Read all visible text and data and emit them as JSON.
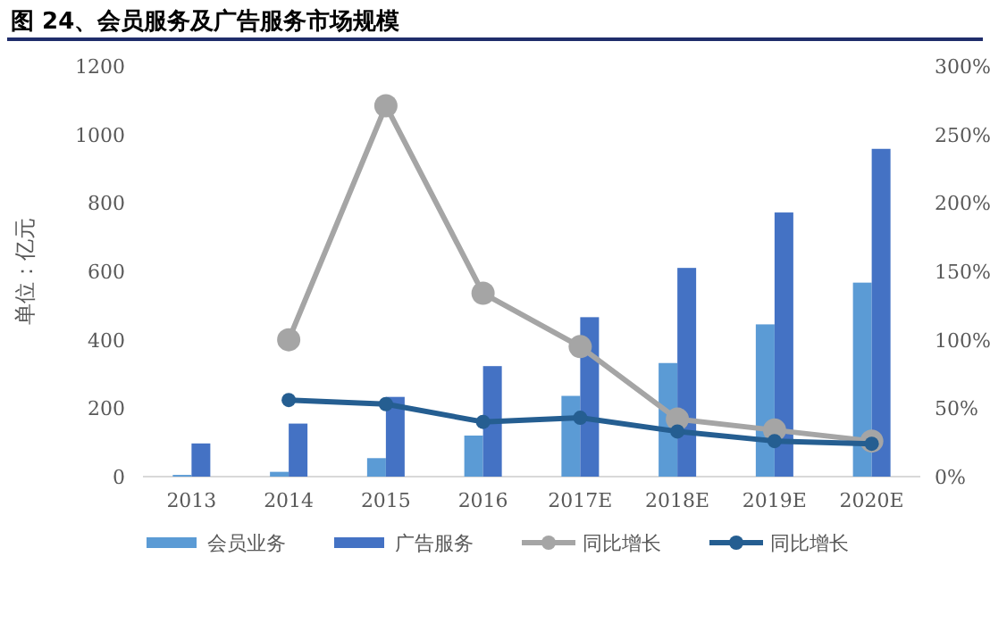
{
  "chart_data": {
    "type": "bar",
    "title": "图 24、会员服务及广告服务市场规模",
    "ylabel": "单位：亿元",
    "categories": [
      "2013",
      "2014",
      "2015",
      "2016",
      "2017E",
      "2018E",
      "2019E",
      "2020E"
    ],
    "series": [
      {
        "name": "会员业务",
        "color": "#5b9bd5",
        "values": [
          5,
          14,
          54,
          120,
          236,
          332,
          445,
          567
        ]
      },
      {
        "name": "广告服务",
        "color": "#4472c4",
        "values": [
          97,
          155,
          233,
          323,
          466,
          610,
          772,
          958
        ]
      },
      {
        "name": "同比增长",
        "type": "line",
        "axis": "y2",
        "color": "#a5a5a5",
        "marker": "circle",
        "values": [
          null,
          100,
          271,
          134,
          95,
          42,
          34,
          26
        ]
      },
      {
        "name": "同比增长",
        "type": "line",
        "axis": "y2",
        "color": "#255e91",
        "marker": "circle",
        "values": [
          null,
          56,
          53,
          40,
          43,
          33,
          26,
          24
        ]
      }
    ],
    "ylim": [
      0,
      1200
    ],
    "yticks": [
      0,
      200,
      400,
      600,
      800,
      1000,
      1200
    ],
    "y2lim": [
      0,
      300
    ],
    "y2ticks": [
      {
        "value": 0,
        "label": "0%"
      },
      {
        "value": 50,
        "label": "50%"
      },
      {
        "value": 100,
        "label": "100%"
      },
      {
        "value": 150,
        "label": "150%"
      },
      {
        "value": 200,
        "label": "200%"
      },
      {
        "value": 250,
        "label": "250%"
      },
      {
        "value": 300,
        "label": "300%"
      }
    ],
    "grid": false,
    "legend": "bottom"
  }
}
